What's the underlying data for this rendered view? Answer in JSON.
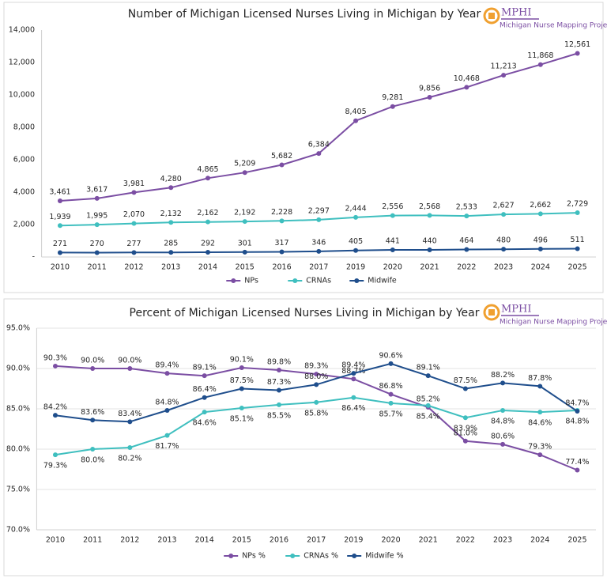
{
  "logo": {
    "name": "MPHI",
    "caption": "Michigan Nurse Mapping Project"
  },
  "chart_data": [
    {
      "type": "line",
      "title": "Number of Michigan Licensed Nurses Living in Michigan by Year",
      "categories": [
        "2010",
        "2011",
        "2012",
        "2013",
        "2014",
        "2015",
        "2016",
        "2017",
        "2019",
        "2020",
        "2021",
        "2022",
        "2023",
        "2024",
        "2025"
      ],
      "series": [
        {
          "name": "NPs",
          "color": "#7b4ea3",
          "values": [
            3461,
            3617,
            3981,
            4280,
            4865,
            5209,
            5682,
            6384,
            8405,
            9281,
            9856,
            10468,
            11213,
            11868,
            12561
          ],
          "value_labels": [
            "3,461",
            "3,617",
            "3,981",
            "4,280",
            "4,865",
            "5,209",
            "5,682",
            "6,384",
            "8,405",
            "9,281",
            "9,856",
            "10,468",
            "11,213",
            "11,868",
            "12,561"
          ]
        },
        {
          "name": "CRNAs",
          "color": "#3fbfbf",
          "values": [
            1939,
            1995,
            2070,
            2132,
            2162,
            2192,
            2228,
            2297,
            2444,
            2556,
            2568,
            2533,
            2627,
            2662,
            2729
          ],
          "value_labels": [
            "1,939",
            "1,995",
            "2,070",
            "2,132",
            "2,162",
            "2,192",
            "2,228",
            "2,297",
            "2,444",
            "2,556",
            "2,568",
            "2,533",
            "2,627",
            "2,662",
            "2,729"
          ]
        },
        {
          "name": "Midwife",
          "color": "#1f4e8c",
          "values": [
            271,
            270,
            277,
            285,
            292,
            301,
            317,
            346,
            405,
            441,
            440,
            464,
            480,
            496,
            511
          ]
        }
      ],
      "ylim": [
        0,
        14000
      ],
      "yticks": [
        {
          "value": 0,
          "label": "-"
        },
        {
          "value": 2000,
          "label": "2,000"
        },
        {
          "value": 4000,
          "label": "4,000"
        },
        {
          "value": 6000,
          "label": "6,000"
        },
        {
          "value": 8000,
          "label": "8,000"
        },
        {
          "value": 10000,
          "label": "10,000"
        },
        {
          "value": 12000,
          "label": "12,000"
        },
        {
          "value": 14000,
          "label": "14,000"
        }
      ],
      "grid": false,
      "legend": "bottom"
    },
    {
      "type": "line",
      "title": "Percent of Michigan Licensed Nurses Living in Michigan by Year",
      "categories": [
        "2010",
        "2011",
        "2012",
        "2013",
        "2014",
        "2015",
        "2016",
        "2017",
        "2019",
        "2020",
        "2021",
        "2022",
        "2023",
        "2024",
        "2025"
      ],
      "series": [
        {
          "name": "NPs %",
          "color": "#7b4ea3",
          "values": [
            90.3,
            90.0,
            90.0,
            89.4,
            89.1,
            90.1,
            89.8,
            89.3,
            88.7,
            86.8,
            85.2,
            81.0,
            80.6,
            79.3,
            77.4
          ],
          "value_labels": [
            "90.3%",
            "90.0%",
            "90.0%",
            "89.4%",
            "89.1%",
            "90.1%",
            "89.8%",
            "89.3%",
            "88.7%",
            "86.8%",
            "85.2%",
            "81.0%",
            "80.6%",
            "79.3%",
            "77.4%"
          ]
        },
        {
          "name": "CRNAs %",
          "color": "#3fbfbf",
          "values": [
            79.3,
            80.0,
            80.2,
            81.7,
            84.6,
            85.1,
            85.5,
            85.8,
            86.4,
            85.7,
            85.4,
            83.9,
            84.8,
            84.6,
            84.8
          ],
          "value_labels": [
            "79.3%",
            "80.0%",
            "80.2%",
            "81.7%",
            "84.6%",
            "85.1%",
            "85.5%",
            "85.8%",
            "86.4%",
            "85.7%",
            "85.4%",
            "83.9%",
            "84.8%",
            "84.6%",
            "84.8%"
          ]
        },
        {
          "name": "Midwife %",
          "color": "#1f4e8c",
          "values": [
            84.2,
            83.6,
            83.4,
            84.8,
            86.4,
            87.5,
            87.3,
            88.0,
            89.4,
            90.6,
            89.1,
            87.5,
            88.2,
            87.8,
            84.7
          ],
          "value_labels": [
            "84.2%",
            "83.6%",
            "83.4%",
            "84.8%",
            "86.4%",
            "87.5%",
            "87.3%",
            "88.0%",
            "89.4%",
            "90.6%",
            "89.1%",
            "87.5%",
            "88.2%",
            "87.8%",
            "84.7%"
          ]
        }
      ],
      "ylim": [
        70,
        95
      ],
      "yticks": [
        {
          "value": 70,
          "label": "70.0%"
        },
        {
          "value": 75,
          "label": "75.0%"
        },
        {
          "value": 80,
          "label": "80.0%"
        },
        {
          "value": 85,
          "label": "85.0%"
        },
        {
          "value": 90,
          "label": "90.0%"
        },
        {
          "value": 95,
          "label": "95.0%"
        }
      ],
      "grid": true,
      "legend": "bottom"
    }
  ]
}
